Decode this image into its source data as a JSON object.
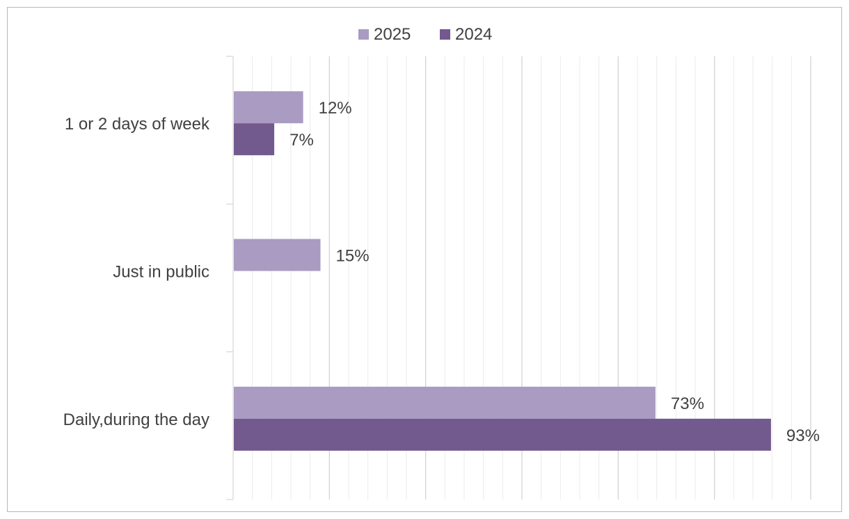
{
  "chart_data": {
    "type": "bar",
    "orientation": "horizontal",
    "categories": [
      "1 or 2 days of week",
      "Just in public",
      "Daily,during the day"
    ],
    "series": [
      {
        "name": "2025",
        "values": [
          12,
          15,
          73
        ],
        "labels": [
          "12%",
          "15%",
          "73%"
        ],
        "color": "#a99bc1"
      },
      {
        "name": "2024",
        "values": [
          7,
          null,
          93
        ],
        "labels": [
          "7%",
          "",
          "93%"
        ],
        "color": "#735a8e"
      }
    ],
    "title": "",
    "xlabel": "",
    "ylabel": "",
    "xlim": [
      0,
      100
    ],
    "grid": true,
    "legend": "top",
    "gridline_color": "#d9d9d9",
    "axis_line_color": "#d9d9d9",
    "label_color": "#404040"
  }
}
